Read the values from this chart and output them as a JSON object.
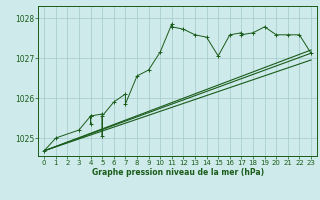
{
  "title": "Graphe pression niveau de la mer (hPa)",
  "bg_color": "#ceeaea",
  "grid_color": "#aacece",
  "line_color": "#1a5c1a",
  "xlim": [
    -0.5,
    23.5
  ],
  "ylim": [
    1024.55,
    1028.3
  ],
  "yticks": [
    1025,
    1026,
    1027,
    1028
  ],
  "xticks": [
    0,
    1,
    2,
    3,
    4,
    5,
    6,
    7,
    8,
    9,
    10,
    11,
    12,
    13,
    14,
    15,
    16,
    17,
    18,
    19,
    20,
    21,
    22,
    23
  ],
  "main_series": [
    [
      0,
      1024.68
    ],
    [
      1,
      1025.0
    ],
    [
      3,
      1025.2
    ],
    [
      4,
      1025.55
    ],
    [
      4,
      1025.35
    ],
    [
      4,
      1025.55
    ],
    [
      5,
      1025.6
    ],
    [
      5,
      1025.05
    ],
    [
      5,
      1025.55
    ],
    [
      6,
      1025.9
    ],
    [
      7,
      1026.1
    ],
    [
      7,
      1025.85
    ],
    [
      8,
      1026.55
    ],
    [
      9,
      1026.7
    ],
    [
      10,
      1027.15
    ],
    [
      11,
      1027.85
    ],
    [
      11,
      1027.78
    ],
    [
      12,
      1027.72
    ],
    [
      13,
      1027.58
    ],
    [
      14,
      1027.52
    ],
    [
      15,
      1027.05
    ],
    [
      16,
      1027.58
    ],
    [
      17,
      1027.63
    ],
    [
      17,
      1027.58
    ],
    [
      18,
      1027.63
    ],
    [
      19,
      1027.78
    ],
    [
      20,
      1027.58
    ],
    [
      21,
      1027.58
    ],
    [
      22,
      1027.58
    ],
    [
      23,
      1027.12
    ]
  ],
  "smooth_line1": [
    [
      0,
      1024.68
    ],
    [
      23,
      1027.2
    ]
  ],
  "smooth_line2": [
    [
      0,
      1024.68
    ],
    [
      23,
      1027.12
    ]
  ],
  "smooth_line3": [
    [
      0,
      1024.68
    ],
    [
      23,
      1026.95
    ]
  ]
}
